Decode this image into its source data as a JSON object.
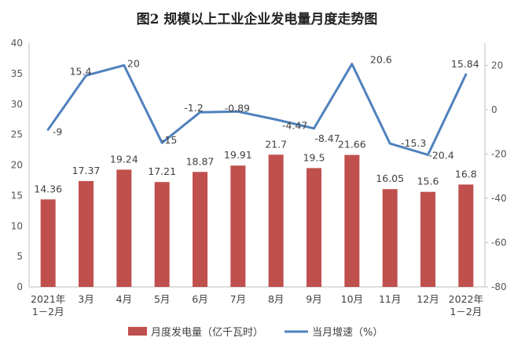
{
  "chart_data": {
    "type": "bar+line",
    "title": "图2  规模以上工业企业发电量月度走势图",
    "categories": [
      [
        "2021年",
        "1－2月"
      ],
      [
        "3月"
      ],
      [
        "4月"
      ],
      [
        "5月"
      ],
      [
        "6月"
      ],
      [
        "7月"
      ],
      [
        "8月"
      ],
      [
        "9月"
      ],
      [
        "10月"
      ],
      [
        "11月"
      ],
      [
        "12月"
      ],
      [
        "2022年",
        "1－2月"
      ]
    ],
    "series": [
      {
        "name": "月度发电量（亿千瓦时）",
        "type": "bar",
        "axis": "left",
        "color": "#c0504d",
        "values": [
          14.36,
          17.37,
          19.24,
          17.21,
          18.87,
          19.91,
          21.7,
          19.5,
          21.66,
          16.05,
          15.6,
          16.8
        ],
        "labels": [
          "14.36",
          "17.37",
          "19.24",
          "17.21",
          "18.87",
          "19.91",
          "21.7",
          "19.5",
          "21.66",
          "16.05",
          "15.6",
          "16.8"
        ]
      },
      {
        "name": "当月增速（%）",
        "type": "line",
        "axis": "right",
        "color": "#4f81bd",
        "values": [
          -9,
          15.4,
          20,
          -15,
          -1.2,
          -0.89,
          -4.47,
          -8.47,
          20.6,
          -15.3,
          -20.4,
          15.84
        ],
        "labels": [
          "-9",
          "15.4",
          "20",
          "-15",
          "-1.2",
          "-0.89",
          "-4.47",
          "-8.47",
          "20.6",
          "-15.3",
          "-20.4",
          "15.84"
        ]
      }
    ],
    "y_left": {
      "min": 0,
      "max": 40,
      "step": 5
    },
    "y_right": {
      "min": -80,
      "max": 30,
      "step": 20,
      "ticks": [
        20,
        0,
        -20,
        -40,
        -60,
        -80
      ]
    },
    "grid": false,
    "legend": "bottom"
  }
}
